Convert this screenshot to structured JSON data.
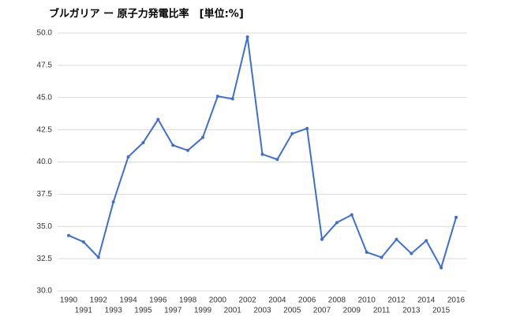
{
  "chart_data": {
    "type": "line",
    "title": "ブルガリア ー 原子力発電比率　[単位:%]",
    "categories": [
      "1990",
      "1991",
      "1992",
      "1993",
      "1994",
      "1995",
      "1996",
      "1997",
      "1998",
      "1999",
      "2000",
      "2001",
      "2002",
      "2003",
      "2004",
      "2005",
      "2006",
      "2007",
      "2008",
      "2009",
      "2010",
      "2011",
      "2012",
      "2013",
      "2014",
      "2015",
      "2016"
    ],
    "series": [
      {
        "name": "原子力発電比率",
        "color": "#3c6fd6",
        "values": [
          34.3,
          33.8,
          32.6,
          36.9,
          40.4,
          41.5,
          43.3,
          41.3,
          40.9,
          41.9,
          45.1,
          44.9,
          49.7,
          40.6,
          40.2,
          42.2,
          42.6,
          34.0,
          35.3,
          35.9,
          33.0,
          32.6,
          34.0,
          32.9,
          33.9,
          31.8,
          35.7
        ]
      }
    ],
    "ylim": [
      30,
      50
    ],
    "yticks": [
      {
        "value": 30,
        "label": "30.0"
      },
      32.5,
      {
        "value": 35,
        "label": "35.0"
      },
      37.5,
      {
        "value": 40,
        "label": "40.0"
      },
      42.5,
      {
        "value": 45,
        "label": "45.0"
      },
      47.5,
      {
        "value": 50,
        "label": "50.0"
      }
    ],
    "grid": true
  }
}
